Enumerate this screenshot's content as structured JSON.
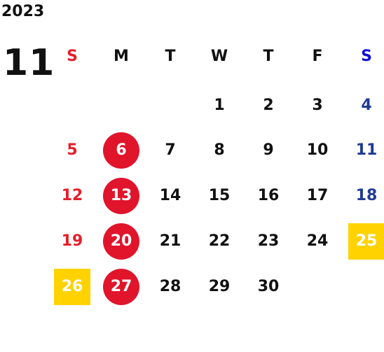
{
  "year": "2023",
  "month": "11",
  "weekdays": [
    "S",
    "M",
    "T",
    "W",
    "T",
    "F",
    "S"
  ],
  "colors": {
    "sunday": "#e3202b",
    "saturday": "#1f3a93",
    "weekday": "#111111",
    "holiday_circle": "#e0142b",
    "highlight_square": "#ffd200"
  },
  "days": [
    {
      "d": "1",
      "col": 3,
      "row": 0
    },
    {
      "d": "2",
      "col": 4,
      "row": 0
    },
    {
      "d": "3",
      "col": 5,
      "row": 0
    },
    {
      "d": "4",
      "col": 6,
      "row": 0
    },
    {
      "d": "5",
      "col": 0,
      "row": 1
    },
    {
      "d": "6",
      "col": 1,
      "row": 1,
      "mark": "circle"
    },
    {
      "d": "7",
      "col": 2,
      "row": 1
    },
    {
      "d": "8",
      "col": 3,
      "row": 1
    },
    {
      "d": "9",
      "col": 4,
      "row": 1
    },
    {
      "d": "10",
      "col": 5,
      "row": 1
    },
    {
      "d": "11",
      "col": 6,
      "row": 1
    },
    {
      "d": "12",
      "col": 0,
      "row": 2
    },
    {
      "d": "13",
      "col": 1,
      "row": 2,
      "mark": "circle"
    },
    {
      "d": "14",
      "col": 2,
      "row": 2
    },
    {
      "d": "15",
      "col": 3,
      "row": 2
    },
    {
      "d": "16",
      "col": 4,
      "row": 2
    },
    {
      "d": "17",
      "col": 5,
      "row": 2
    },
    {
      "d": "18",
      "col": 6,
      "row": 2
    },
    {
      "d": "19",
      "col": 0,
      "row": 3
    },
    {
      "d": "20",
      "col": 1,
      "row": 3,
      "mark": "circle"
    },
    {
      "d": "21",
      "col": 2,
      "row": 3
    },
    {
      "d": "22",
      "col": 3,
      "row": 3
    },
    {
      "d": "23",
      "col": 4,
      "row": 3
    },
    {
      "d": "24",
      "col": 5,
      "row": 3
    },
    {
      "d": "25",
      "col": 6,
      "row": 3,
      "mark": "square"
    },
    {
      "d": "26",
      "col": 0,
      "row": 4,
      "mark": "square"
    },
    {
      "d": "27",
      "col": 1,
      "row": 4,
      "mark": "circle"
    },
    {
      "d": "28",
      "col": 2,
      "row": 4
    },
    {
      "d": "29",
      "col": 3,
      "row": 4
    },
    {
      "d": "30",
      "col": 4,
      "row": 4
    }
  ]
}
